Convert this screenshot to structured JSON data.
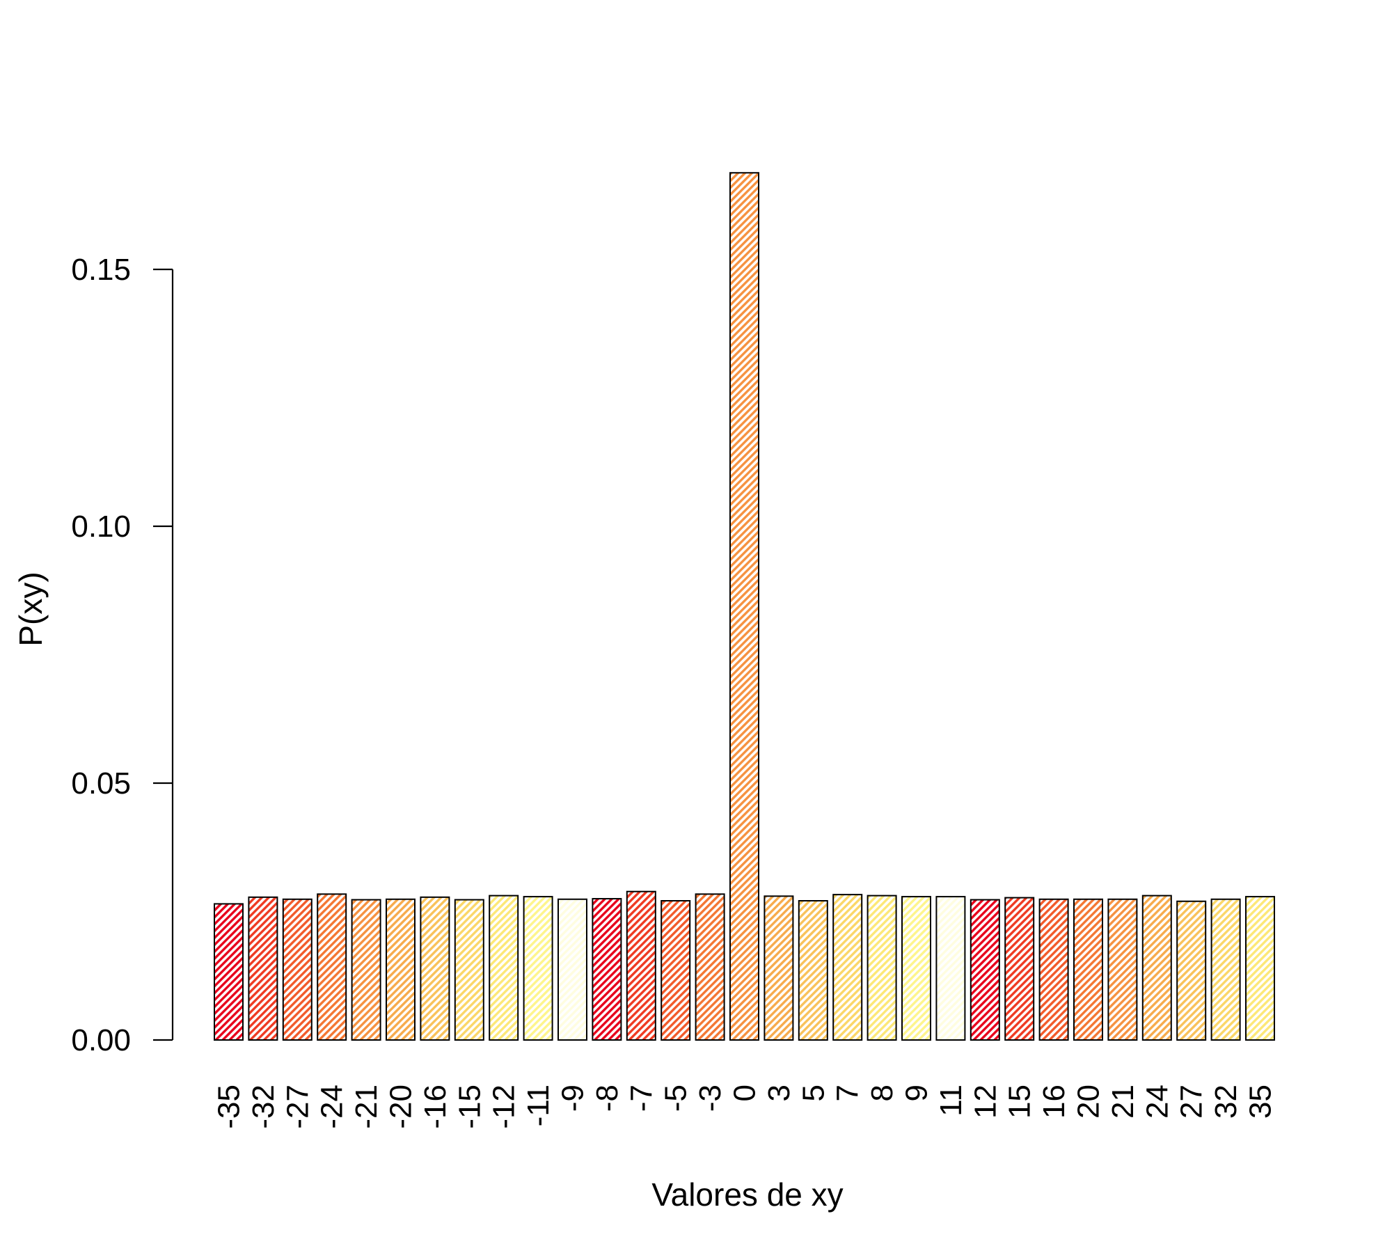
{
  "chart_data": {
    "type": "bar",
    "title": "",
    "xlabel": "Valores de xy",
    "ylabel": "P(xy)",
    "ylim": [
      0,
      0.17
    ],
    "yticks": [
      "0.00",
      "0.05",
      "0.10",
      "0.15"
    ],
    "ytick_values": [
      0.0,
      0.05,
      0.1,
      0.15
    ],
    "categories": [
      "-35",
      "-32",
      "-27",
      "-24",
      "-21",
      "-20",
      "-16",
      "-15",
      "-12",
      "-11",
      "-9",
      "-8",
      "-7",
      "-5",
      "-3",
      "0",
      "3",
      "5",
      "7",
      "8",
      "9",
      "11",
      "12",
      "15",
      "16",
      "20",
      "21",
      "24",
      "27",
      "32",
      "35"
    ],
    "values": [
      0.0265,
      0.0278,
      0.0274,
      0.0284,
      0.0273,
      0.0274,
      0.0278,
      0.0273,
      0.0281,
      0.0279,
      0.0274,
      0.0275,
      0.0289,
      0.0271,
      0.0284,
      0.1688,
      0.028,
      0.0271,
      0.0283,
      0.0281,
      0.0279,
      0.0279,
      0.0273,
      0.0277,
      0.0274,
      0.0274,
      0.0274,
      0.0281,
      0.027,
      0.0274,
      0.0279
    ],
    "colors": [
      "#e8001b",
      "#ef3a22",
      "#f25a2a",
      "#f47733",
      "#f69240",
      "#f7ab4c",
      "#f9c25a",
      "#fbd768",
      "#fde877",
      "#fef58c",
      "#fffde0",
      "#e8001b",
      "#ef3a22",
      "#f25a2a",
      "#f47733",
      "#f69240",
      "#f7ab4c",
      "#f9c25a",
      "#fbd768",
      "#fde877",
      "#fef58c",
      "#fffde0",
      "#e8001b",
      "#ef3a22",
      "#f25a2a",
      "#f47733",
      "#f69240",
      "#f7ab4c",
      "#f9c25a",
      "#fbd768",
      "#fde877"
    ],
    "bar_fill": "hatched",
    "grid": false,
    "legend": "none"
  }
}
